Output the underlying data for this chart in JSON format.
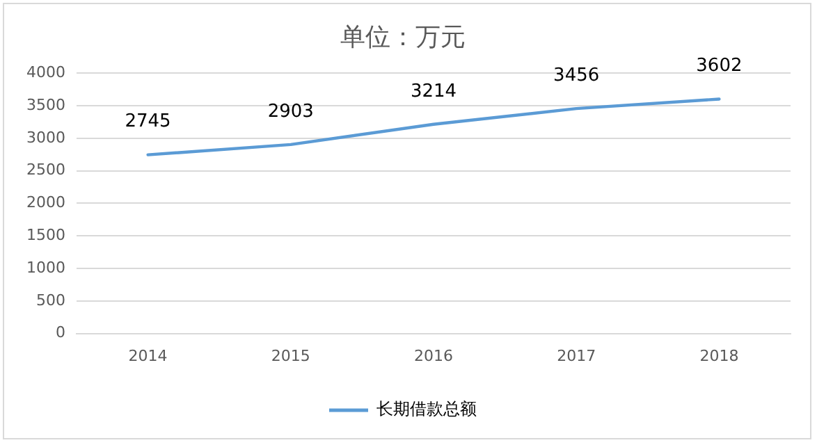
{
  "chart_data": {
    "type": "line",
    "title": "单位：万元",
    "categories": [
      "2014",
      "2015",
      "2016",
      "2017",
      "2018"
    ],
    "series": [
      {
        "name": "长期借款总额",
        "color": "#5b9bd5",
        "values": [
          2745,
          2903,
          3214,
          3456,
          3602
        ]
      }
    ],
    "ylim": [
      0,
      4000
    ],
    "yticks": [
      0,
      500,
      1000,
      1500,
      2000,
      2500,
      3000,
      3500,
      4000
    ],
    "grid": "y",
    "legend": "bottom",
    "data_labels": true,
    "marker": "none",
    "line_style": "solid"
  }
}
